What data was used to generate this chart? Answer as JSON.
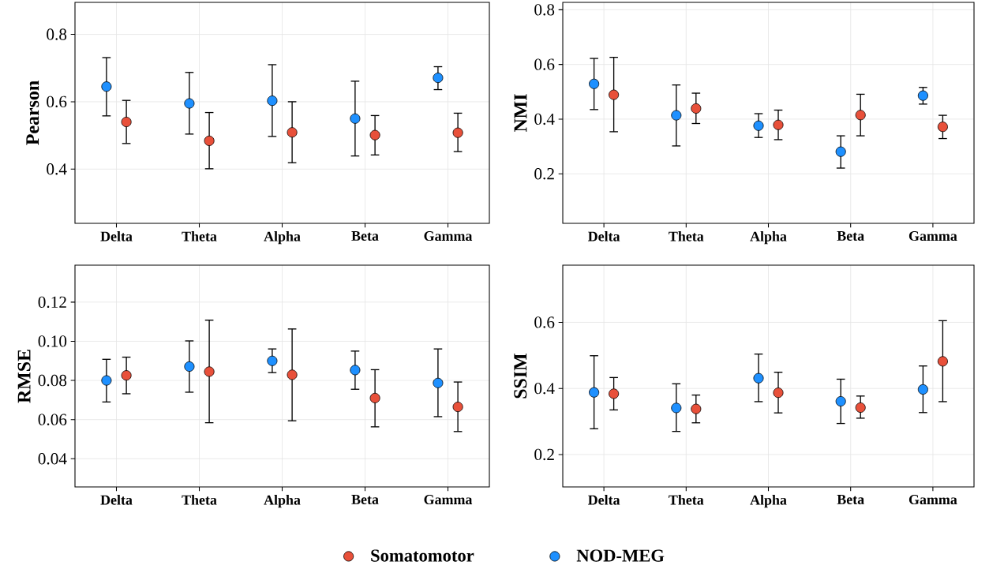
{
  "chart_data": [
    {
      "type": "scatter",
      "ylabel": "Pearson",
      "categories": [
        "Delta",
        "Theta",
        "Alpha",
        "Beta",
        "Gamma"
      ],
      "ylim": [
        0.239,
        0.895
      ],
      "yticks": [
        0.4,
        0.6,
        0.8
      ],
      "grid": true,
      "series": [
        {
          "color": "#e8503a",
          "values": [
            0.54,
            0.484,
            0.509,
            0.501,
            0.508
          ],
          "errors": [
            [
              0.476,
              0.604
            ],
            [
              0.401,
              0.568
            ],
            [
              0.419,
              0.6
            ],
            [
              0.442,
              0.559
            ],
            [
              0.452,
              0.566
            ]
          ]
        },
        {
          "color": "#1e90ff",
          "values": [
            0.645,
            0.595,
            0.603,
            0.55,
            0.671
          ],
          "errors": [
            [
              0.558,
              0.731
            ],
            [
              0.504,
              0.687
            ],
            [
              0.497,
              0.71
            ],
            [
              0.439,
              0.661
            ],
            [
              0.636,
              0.704
            ]
          ]
        }
      ]
    },
    {
      "type": "scatter",
      "ylabel": "NMI",
      "categories": [
        "Delta",
        "Theta",
        "Alpha",
        "Beta",
        "Gamma"
      ],
      "ylim": [
        0.019,
        0.827
      ],
      "yticks": [
        0.2,
        0.4,
        0.6,
        0.8
      ],
      "grid": true,
      "series": [
        {
          "color": "#e8503a",
          "values": [
            0.489,
            0.439,
            0.379,
            0.415,
            0.372
          ],
          "errors": [
            [
              0.354,
              0.626
            ],
            [
              0.384,
              0.495
            ],
            [
              0.325,
              0.433
            ],
            [
              0.339,
              0.491
            ],
            [
              0.329,
              0.414
            ]
          ]
        },
        {
          "color": "#1e90ff",
          "values": [
            0.529,
            0.414,
            0.376,
            0.281,
            0.486
          ],
          "errors": [
            [
              0.435,
              0.622
            ],
            [
              0.302,
              0.525
            ],
            [
              0.333,
              0.42
            ],
            [
              0.221,
              0.339
            ],
            [
              0.455,
              0.516
            ]
          ]
        }
      ]
    },
    {
      "type": "scatter",
      "ylabel": "RMSE",
      "categories": [
        "Delta",
        "Theta",
        "Alpha",
        "Beta",
        "Gamma"
      ],
      "ylim": [
        0.0256,
        0.1389
      ],
      "yticks": [
        0.04,
        0.06,
        0.08,
        {
          "value": 0.1,
          "label": "0.10"
        },
        0.12
      ],
      "grid": true,
      "series": [
        {
          "color": "#e8503a",
          "values": [
            0.0826,
            0.0845,
            0.0829,
            0.071,
            0.0665
          ],
          "errors": [
            [
              0.0732,
              0.0919
            ],
            [
              0.0584,
              0.1108
            ],
            [
              0.0594,
              0.1063
            ],
            [
              0.0563,
              0.0855
            ],
            [
              0.0539,
              0.0792
            ]
          ]
        },
        {
          "color": "#1e90ff",
          "values": [
            0.08,
            0.0871,
            0.09,
            0.0853,
            0.0787
          ],
          "errors": [
            [
              0.069,
              0.0908
            ],
            [
              0.074,
              0.1002
            ],
            [
              0.084,
              0.0961
            ],
            [
              0.0755,
              0.095
            ],
            [
              0.0615,
              0.0961
            ]
          ]
        }
      ]
    },
    {
      "type": "scatter",
      "ylabel": "SSIM",
      "categories": [
        "Delta",
        "Theta",
        "Alpha",
        "Beta",
        "Gamma"
      ],
      "ylim": [
        0.102,
        0.773
      ],
      "yticks": [
        0.2,
        0.4,
        0.6
      ],
      "grid": true,
      "legend": "bottom",
      "series": [
        {
          "name": "Somatomotor",
          "color": "#e8503a",
          "values": [
            0.384,
            0.338,
            0.387,
            0.342,
            0.482
          ],
          "errors": [
            [
              0.335,
              0.433
            ],
            [
              0.296,
              0.38
            ],
            [
              0.326,
              0.449
            ],
            [
              0.31,
              0.377
            ],
            [
              0.36,
              0.605
            ]
          ]
        },
        {
          "name": "NOD-MEG",
          "color": "#1e90ff",
          "values": [
            0.388,
            0.341,
            0.431,
            0.361,
            0.397
          ],
          "errors": [
            [
              0.278,
              0.499
            ],
            [
              0.27,
              0.414
            ],
            [
              0.36,
              0.504
            ],
            [
              0.294,
              0.428
            ],
            [
              0.327,
              0.468
            ]
          ]
        }
      ]
    }
  ]
}
